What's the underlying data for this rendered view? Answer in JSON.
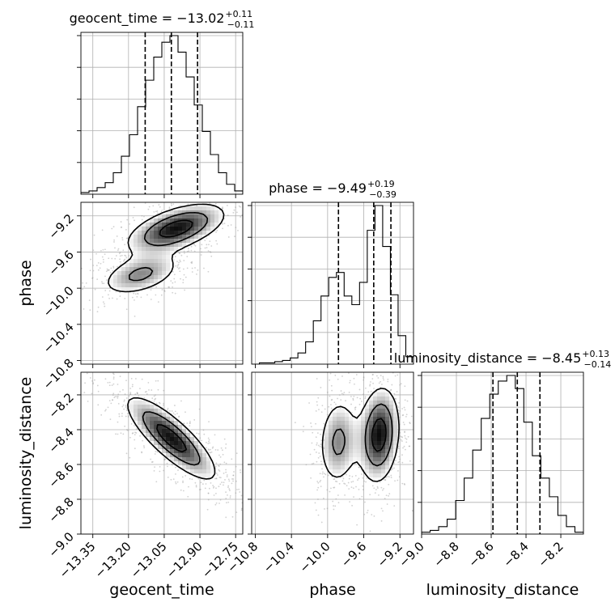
{
  "chart_data": {
    "type": "corner",
    "grid": true,
    "parameters": [
      {
        "name": "geocent_time",
        "label": "geocent_time",
        "title_prefix": "geocent_time = ",
        "median": "−13.02",
        "err_plus": "+0.11",
        "err_minus": "−0.11",
        "quantiles": [
          -13.13,
          -13.02,
          -12.91
        ],
        "range": [
          -13.4,
          -12.72
        ],
        "ticks": [
          -13.35,
          -13.2,
          -13.05,
          -12.9,
          -12.75
        ],
        "tick_labels": [
          "−13.35",
          "−13.20",
          "−13.05",
          "−12.90",
          "−12.75"
        ],
        "hist": [
          1,
          2,
          4,
          7,
          13,
          23,
          36,
          53,
          69,
          83,
          92,
          96,
          86,
          71,
          54,
          38,
          24,
          13,
          6,
          2
        ]
      },
      {
        "name": "phase",
        "label": "phase",
        "title_prefix": "phase = ",
        "median": "−9.49",
        "err_plus": "+0.19",
        "err_minus": "−0.39",
        "quantiles": [
          -9.88,
          -9.49,
          -9.3
        ],
        "range": [
          -10.84,
          -9.05
        ],
        "ticks": [
          -10.8,
          -10.4,
          -10.0,
          -9.6,
          -9.2
        ],
        "tick_labels": [
          "−10.8",
          "−10.4",
          "−10.0",
          "−9.6",
          "−9.2"
        ],
        "hist": [
          0,
          1,
          1,
          2,
          3,
          5,
          9,
          18,
          35,
          55,
          70,
          74,
          55,
          48,
          66,
          108,
          128,
          95,
          56,
          23,
          6
        ]
      },
      {
        "name": "luminosity_distance",
        "label": "luminosity_distance",
        "title_prefix": "luminosity_distance = ",
        "median": "−8.45",
        "err_plus": "+0.13",
        "err_minus": "−0.14",
        "quantiles": [
          -8.59,
          -8.45,
          -8.32
        ],
        "range": [
          -9.0,
          -8.07
        ],
        "ticks": [
          -9.0,
          -8.8,
          -8.6,
          -8.4,
          -8.2
        ],
        "tick_labels": [
          "−9.0",
          "−8.8",
          "−8.6",
          "−8.4",
          "−8.2"
        ],
        "hist": [
          1,
          2,
          4,
          8,
          18,
          30,
          45,
          62,
          75,
          82,
          85,
          78,
          60,
          42,
          30,
          20,
          10,
          4,
          1
        ]
      }
    ],
    "pairs": [
      {
        "x": "geocent_time",
        "y": "phase",
        "components": [
          {
            "cx": -13.0,
            "cy": -9.34,
            "sx": 0.12,
            "sy": 0.16,
            "rho": 0.55,
            "w": 0.62
          },
          {
            "cx": -13.15,
            "cy": -9.85,
            "sx": 0.1,
            "sy": 0.14,
            "rho": 0.45,
            "w": 0.38
          }
        ],
        "contour_levels": [
          0.85,
          0.55,
          0.25
        ]
      },
      {
        "x": "geocent_time",
        "y": "luminosity_distance",
        "components": [
          {
            "cx": -13.02,
            "cy": -8.45,
            "sx": 0.11,
            "sy": 0.14,
            "rho": -0.82,
            "w": 1.0
          }
        ],
        "contour_levels": [
          0.85,
          0.55,
          0.25
        ]
      },
      {
        "x": "phase",
        "y": "luminosity_distance",
        "components": [
          {
            "cx": -9.43,
            "cy": -8.43,
            "sx": 0.13,
            "sy": 0.16,
            "rho": 0.15,
            "w": 0.62
          },
          {
            "cx": -9.88,
            "cy": -8.47,
            "sx": 0.13,
            "sy": 0.15,
            "rho": 0.1,
            "w": 0.38
          }
        ],
        "contour_levels": [
          0.85,
          0.55,
          0.25
        ]
      }
    ]
  }
}
